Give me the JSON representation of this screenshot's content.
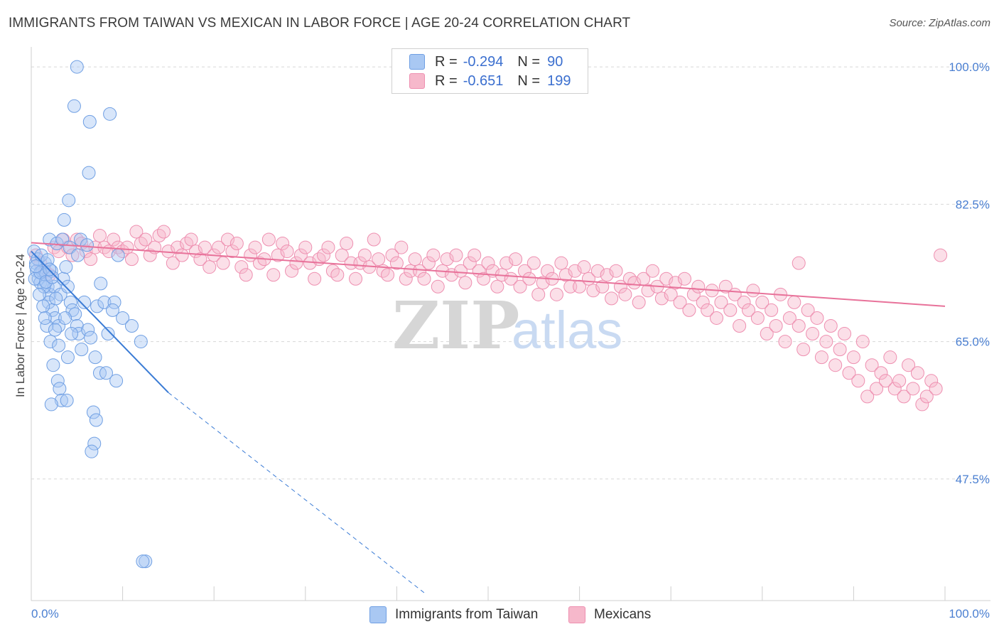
{
  "title": "IMMIGRANTS FROM TAIWAN VS MEXICAN IN LABOR FORCE | AGE 20-24 CORRELATION CHART",
  "source": "Source: ZipAtlas.com",
  "watermark": {
    "zip": "ZIP",
    "atlas": "atlas"
  },
  "legend": {
    "rows": [
      {
        "r_label": "R =",
        "r_value": "-0.294",
        "n_label": "N =",
        "n_value": "90"
      },
      {
        "r_label": "R =",
        "r_value": "-0.651",
        "n_label": "N =",
        "n_value": "199"
      }
    ]
  },
  "bottom_legend": [
    "Immigrants from Taiwan",
    "Mexicans"
  ],
  "colors": {
    "blue_fill": "#a9c8f3",
    "blue_stroke": "#6f9fe3",
    "blue_line": "#3a7bd5",
    "pink_fill": "#f6b8cb",
    "pink_stroke": "#ee8fb0",
    "pink_line": "#e8729a",
    "grid": "#d8d8d8",
    "tick_label": "#4a7fd1"
  },
  "chart_data": {
    "type": "scatter",
    "title": "IMMIGRANTS FROM TAIWAN VS MEXICAN IN LABOR FORCE | AGE 20-24 CORRELATION CHART",
    "xlabel": "",
    "ylabel": "In Labor Force | Age 20-24",
    "xlim": [
      0,
      100
    ],
    "ylim": [
      32,
      102
    ],
    "x_tick_labels": [
      "0.0%",
      "100.0%"
    ],
    "y_ticks": [
      47.5,
      65.0,
      82.5,
      100.0
    ],
    "y_tick_labels": [
      "47.5%",
      "65.0%",
      "82.5%",
      "100.0%"
    ],
    "grid": true,
    "legend_position": "top-center",
    "series": [
      {
        "name": "Immigrants from Taiwan",
        "r": -0.294,
        "n": 90,
        "trend": {
          "x": [
            0,
            15
          ],
          "y": [
            76.5,
            58.5
          ],
          "dashed_to": [
            43,
            33
          ]
        },
        "points": [
          [
            0.3,
            76.5
          ],
          [
            0.5,
            75
          ],
          [
            0.6,
            74
          ],
          [
            0.8,
            73
          ],
          [
            1,
            72.5
          ],
          [
            1.2,
            74
          ],
          [
            1.5,
            75
          ],
          [
            1.6,
            73.5
          ],
          [
            1.8,
            72
          ],
          [
            2,
            71
          ],
          [
            2.2,
            74
          ],
          [
            2.5,
            72
          ],
          [
            0.4,
            73
          ],
          [
            0.7,
            75.5
          ],
          [
            1.1,
            76
          ],
          [
            1.4,
            72
          ],
          [
            1.9,
            70
          ],
          [
            2.3,
            69
          ],
          [
            2.6,
            68
          ],
          [
            3,
            67
          ],
          [
            3.2,
            71
          ],
          [
            3.5,
            73
          ],
          [
            3.8,
            74.5
          ],
          [
            4,
            72
          ],
          [
            4.3,
            70
          ],
          [
            4.5,
            69
          ],
          [
            4.8,
            68.5
          ],
          [
            5,
            67
          ],
          [
            5.2,
            66
          ],
          [
            5.5,
            64
          ],
          [
            2,
            78
          ],
          [
            2.8,
            77.5
          ],
          [
            3.4,
            78
          ],
          [
            4.2,
            77
          ],
          [
            5.1,
            76
          ],
          [
            3.6,
            80.5
          ],
          [
            4.1,
            83
          ],
          [
            5.8,
            70
          ],
          [
            6.2,
            66.5
          ],
          [
            6.5,
            65.5
          ],
          [
            1.7,
            67
          ],
          [
            2.1,
            65
          ],
          [
            2.4,
            62
          ],
          [
            2.9,
            60
          ],
          [
            3.1,
            59
          ],
          [
            3.3,
            57.5
          ],
          [
            3.9,
            57.5
          ],
          [
            2.2,
            57
          ],
          [
            6.4,
            93
          ],
          [
            4.7,
            95
          ],
          [
            8.6,
            94
          ],
          [
            5,
            100
          ],
          [
            6.3,
            86.5
          ],
          [
            7.2,
            69.5
          ],
          [
            8,
            70
          ],
          [
            8.4,
            66
          ],
          [
            9.1,
            70
          ],
          [
            10,
            68
          ],
          [
            11,
            67
          ],
          [
            12,
            65
          ],
          [
            7,
            63
          ],
          [
            7.5,
            61
          ],
          [
            8.2,
            61
          ],
          [
            9.3,
            60
          ],
          [
            6.8,
            56
          ],
          [
            7.1,
            55
          ],
          [
            6.9,
            52
          ],
          [
            6.6,
            51
          ],
          [
            12.5,
            37
          ],
          [
            12.2,
            37
          ],
          [
            0.9,
            71
          ],
          [
            1.3,
            69.5
          ],
          [
            2.7,
            70.5
          ],
          [
            3.7,
            68
          ],
          [
            4.4,
            66
          ],
          [
            1,
            73.8
          ],
          [
            1.6,
            72.6
          ],
          [
            2.3,
            73.2
          ],
          [
            0.5,
            74.6
          ],
          [
            1.8,
            75.4
          ],
          [
            3,
            64.5
          ],
          [
            4,
            63
          ],
          [
            2.6,
            66.5
          ],
          [
            1.5,
            68
          ],
          [
            7.6,
            72.4
          ],
          [
            8.9,
            69
          ],
          [
            9.5,
            76
          ],
          [
            5.4,
            78
          ],
          [
            6.1,
            77.3
          ],
          [
            2,
            74.2
          ]
        ]
      },
      {
        "name": "Mexicans",
        "r": -0.651,
        "n": 199,
        "trend": {
          "x": [
            0,
            100
          ],
          "y": [
            77.6,
            69.5
          ]
        },
        "points": [
          [
            0.5,
            76
          ],
          [
            1,
            75
          ],
          [
            1.5,
            74
          ],
          [
            2,
            73.5
          ],
          [
            2.5,
            77
          ],
          [
            3,
            76.5
          ],
          [
            3.5,
            78
          ],
          [
            4,
            77
          ],
          [
            4.5,
            76
          ],
          [
            5,
            78
          ],
          [
            5.5,
            77.5
          ],
          [
            6,
            76.5
          ],
          [
            6.5,
            75.5
          ],
          [
            7,
            77
          ],
          [
            7.5,
            78.5
          ],
          [
            8,
            77
          ],
          [
            8.5,
            76.5
          ],
          [
            9,
            78
          ],
          [
            9.5,
            77
          ],
          [
            10,
            76.5
          ],
          [
            10.5,
            77
          ],
          [
            11,
            75.5
          ],
          [
            11.5,
            79
          ],
          [
            12,
            77.5
          ],
          [
            12.5,
            78
          ],
          [
            13,
            76
          ],
          [
            13.5,
            77
          ],
          [
            14,
            78.5
          ],
          [
            14.5,
            79
          ],
          [
            15,
            76.5
          ],
          [
            15.5,
            75
          ],
          [
            16,
            77
          ],
          [
            16.5,
            76
          ],
          [
            17,
            77.5
          ],
          [
            17.5,
            78
          ],
          [
            18,
            76.5
          ],
          [
            18.5,
            75.5
          ],
          [
            19,
            77
          ],
          [
            19.5,
            74.5
          ],
          [
            20,
            76
          ],
          [
            20.5,
            77
          ],
          [
            21,
            75
          ],
          [
            21.5,
            78
          ],
          [
            22,
            76.5
          ],
          [
            22.5,
            77.5
          ],
          [
            23,
            74.5
          ],
          [
            23.5,
            73.5
          ],
          [
            24,
            76
          ],
          [
            24.5,
            77
          ],
          [
            25,
            75
          ],
          [
            25.5,
            75.5
          ],
          [
            26,
            78
          ],
          [
            26.5,
            73.5
          ],
          [
            27,
            76
          ],
          [
            27.5,
            77.5
          ],
          [
            28,
            76.5
          ],
          [
            28.5,
            74
          ],
          [
            29,
            75
          ],
          [
            29.5,
            76
          ],
          [
            30,
            77
          ],
          [
            30.5,
            75
          ],
          [
            31,
            73
          ],
          [
            31.5,
            75.5
          ],
          [
            32,
            76
          ],
          [
            32.5,
            77
          ],
          [
            33,
            74
          ],
          [
            33.5,
            73.5
          ],
          [
            34,
            76
          ],
          [
            34.5,
            77.5
          ],
          [
            35,
            75
          ],
          [
            35.5,
            73
          ],
          [
            36,
            75
          ],
          [
            36.5,
            76
          ],
          [
            37,
            74.5
          ],
          [
            37.5,
            78
          ],
          [
            38,
            75.5
          ],
          [
            38.5,
            74
          ],
          [
            39,
            73.5
          ],
          [
            39.5,
            76
          ],
          [
            40,
            75
          ],
          [
            40.5,
            77
          ],
          [
            41,
            73
          ],
          [
            41.5,
            74
          ],
          [
            42,
            75.5
          ],
          [
            42.5,
            74
          ],
          [
            43,
            73
          ],
          [
            43.5,
            75
          ],
          [
            44,
            76
          ],
          [
            44.5,
            72
          ],
          [
            45,
            74
          ],
          [
            45.5,
            75.5
          ],
          [
            46,
            73.5
          ],
          [
            46.5,
            76
          ],
          [
            47,
            74
          ],
          [
            47.5,
            72.5
          ],
          [
            48,
            75
          ],
          [
            48.5,
            76
          ],
          [
            49,
            74
          ],
          [
            49.5,
            73
          ],
          [
            50,
            75
          ],
          [
            50.5,
            74
          ],
          [
            51,
            72
          ],
          [
            51.5,
            73.5
          ],
          [
            52,
            75
          ],
          [
            52.5,
            73
          ],
          [
            53,
            75.5
          ],
          [
            53.5,
            72
          ],
          [
            54,
            74
          ],
          [
            54.5,
            73
          ],
          [
            55,
            75
          ],
          [
            55.5,
            71
          ],
          [
            56,
            72.5
          ],
          [
            56.5,
            74
          ],
          [
            57,
            73
          ],
          [
            57.5,
            71
          ],
          [
            58,
            75
          ],
          [
            58.5,
            73.5
          ],
          [
            59,
            72
          ],
          [
            59.5,
            74
          ],
          [
            60,
            72
          ],
          [
            60.5,
            74.5
          ],
          [
            61,
            73
          ],
          [
            61.5,
            71.5
          ],
          [
            62,
            74
          ],
          [
            62.5,
            72
          ],
          [
            63,
            73.5
          ],
          [
            63.5,
            70.5
          ],
          [
            64,
            74
          ],
          [
            64.5,
            72
          ],
          [
            65,
            71
          ],
          [
            65.5,
            73
          ],
          [
            66,
            72.5
          ],
          [
            66.5,
            70
          ],
          [
            67,
            73
          ],
          [
            67.5,
            71.5
          ],
          [
            68,
            74
          ],
          [
            68.5,
            72
          ],
          [
            69,
            70.5
          ],
          [
            69.5,
            73
          ],
          [
            70,
            71
          ],
          [
            70.5,
            72.5
          ],
          [
            71,
            70
          ],
          [
            71.5,
            73
          ],
          [
            72,
            69
          ],
          [
            72.5,
            71
          ],
          [
            73,
            72
          ],
          [
            73.5,
            70
          ],
          [
            74,
            69
          ],
          [
            74.5,
            71.5
          ],
          [
            75,
            68
          ],
          [
            75.5,
            70
          ],
          [
            76,
            72
          ],
          [
            76.5,
            69
          ],
          [
            77,
            71
          ],
          [
            77.5,
            67
          ],
          [
            78,
            70
          ],
          [
            78.5,
            69
          ],
          [
            79,
            71.5
          ],
          [
            79.5,
            68
          ],
          [
            80,
            70
          ],
          [
            80.5,
            66
          ],
          [
            81,
            69
          ],
          [
            81.5,
            67
          ],
          [
            82,
            71
          ],
          [
            82.5,
            65
          ],
          [
            83,
            68
          ],
          [
            83.5,
            70
          ],
          [
            84,
            67
          ],
          [
            84.5,
            64
          ],
          [
            85,
            69
          ],
          [
            85.5,
            66
          ],
          [
            86,
            68
          ],
          [
            86.5,
            63
          ],
          [
            87,
            65
          ],
          [
            87.5,
            67
          ],
          [
            88,
            62
          ],
          [
            88.5,
            64
          ],
          [
            89,
            66
          ],
          [
            89.5,
            61
          ],
          [
            90,
            63
          ],
          [
            90.5,
            60
          ],
          [
            91,
            65
          ],
          [
            91.5,
            58
          ],
          [
            92,
            62
          ],
          [
            92.5,
            59
          ],
          [
            93,
            61
          ],
          [
            93.5,
            60
          ],
          [
            94,
            63
          ],
          [
            94.5,
            59
          ],
          [
            95,
            60
          ],
          [
            95.5,
            58
          ],
          [
            96,
            62
          ],
          [
            96.5,
            59
          ],
          [
            97,
            61
          ],
          [
            97.5,
            57
          ],
          [
            98,
            58
          ],
          [
            98.5,
            60
          ],
          [
            99,
            59
          ],
          [
            99.5,
            76
          ],
          [
            84,
            75
          ]
        ]
      }
    ]
  }
}
